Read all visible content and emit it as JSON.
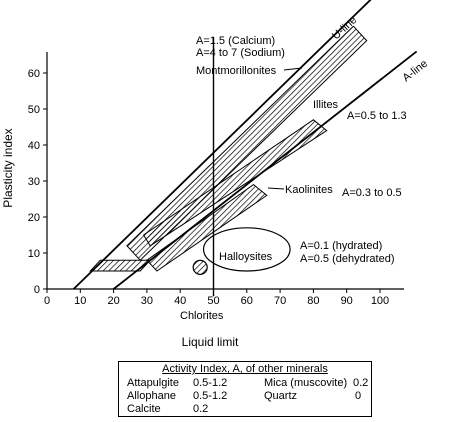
{
  "chart_data": {
    "type": "line",
    "xlabel": "Liquid limit",
    "ylabel": "Plasticity index",
    "xlim": [
      0,
      110
    ],
    "ylim": [
      0,
      70
    ],
    "xticks": [
      0,
      10,
      20,
      30,
      40,
      50,
      60,
      70,
      80,
      90,
      100
    ],
    "yticks": [
      0,
      10,
      20,
      30,
      40,
      50,
      60
    ],
    "grid": false,
    "lines": [
      {
        "name": "U-line",
        "x": [
          8,
          99
        ],
        "y": [
          0,
          82
        ]
      },
      {
        "name": "A-line",
        "x": [
          20,
          111
        ],
        "y": [
          0,
          66
        ]
      },
      {
        "name": "",
        "x": [
          50,
          50
        ],
        "y": [
          -2,
          70
        ]
      }
    ],
    "series": [
      {
        "name": "Montmorillonites",
        "polygon": [
          [
            28,
            8
          ],
          [
            96,
            69
          ],
          [
            92,
            73
          ],
          [
            24,
            12
          ]
        ]
      },
      {
        "name": "Illites",
        "polygon": [
          [
            31,
            12
          ],
          [
            84,
            44
          ],
          [
            80,
            47
          ],
          [
            29,
            15
          ]
        ]
      },
      {
        "name": "Kaolinites",
        "polygon": [
          [
            33,
            5
          ],
          [
            66,
            26
          ],
          [
            62,
            29
          ],
          [
            30,
            8
          ]
        ]
      },
      {
        "name": "",
        "polygon": [
          [
            13,
            5
          ],
          [
            28,
            5
          ],
          [
            31,
            8
          ],
          [
            16,
            8
          ]
        ]
      }
    ],
    "ellipses": [
      {
        "name": "Halloysites",
        "cx": 60,
        "cy": 11,
        "rx": 13,
        "ry": 6
      }
    ],
    "points": [
      {
        "name": "Chlorites",
        "x": 46,
        "y": 6
      }
    ],
    "annotations": {
      "u_line": "U-line",
      "a_line": "A-line",
      "calcium": "A=1.5 (Calcium)",
      "sodium": "A=4 to 7 (Sodium)",
      "montmorillonites": "Montmorillonites",
      "illites": "Illites",
      "illites_a": "A=0.5 to 1.3",
      "kaolinites": "Kaolinites",
      "kaolinites_a": "A=0.3 to 0.5",
      "halloysites": "Halloysites",
      "hydrated": "A=0.1 (hydrated)",
      "dehydrated": "A=0.5 (dehydrated)",
      "chlorites": "Chlorites"
    }
  },
  "activity_table": {
    "title": "Activity Index, A, of other minerals",
    "rows": [
      {
        "name": "Attapulgite",
        "value": "0.5-1.2"
      },
      {
        "name": "Allophane",
        "value": "0.5-1.2"
      },
      {
        "name": "Calcite",
        "value": "0.2"
      },
      {
        "name": "Mica (muscovite)",
        "value": "0.2"
      },
      {
        "name": "Quartz",
        "value": "0"
      }
    ]
  }
}
